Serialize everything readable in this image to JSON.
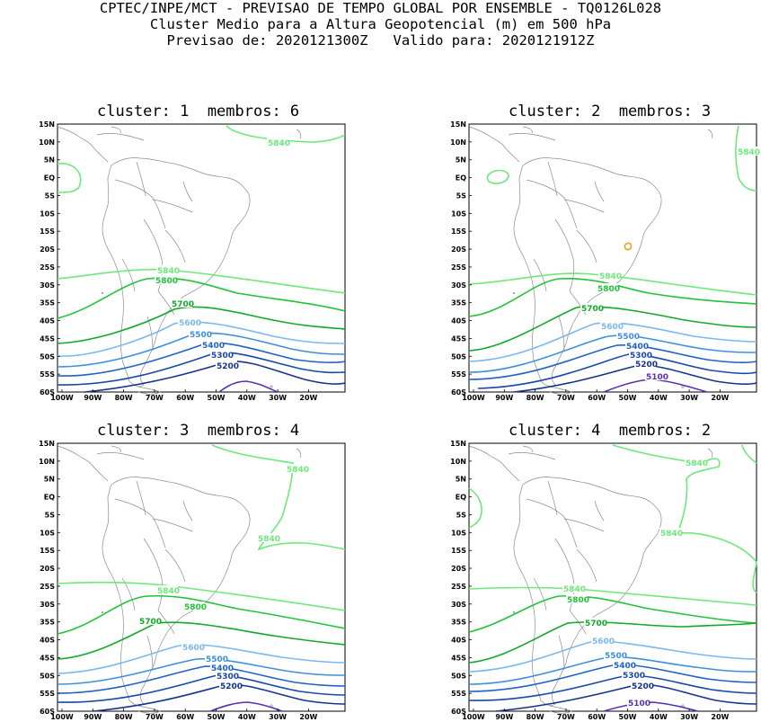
{
  "header": {
    "line1": "CPTEC/INPE/MCT - PREVISAO DE TEMPO GLOBAL POR ENSEMBLE - TQ0126L028",
    "line2": "Cluster Medio para a Altura Geopotencial (m) em 500 hPa",
    "line3": "Previsao de: 2020121300Z   Valido para: 2020121912Z"
  },
  "axes": {
    "lat_labels": [
      "15N",
      "10N",
      "5N",
      "EQ",
      "5S",
      "10S",
      "15S",
      "20S",
      "25S",
      "30S",
      "35S",
      "40S",
      "45S",
      "50S",
      "55S",
      "60S"
    ],
    "lon_labels": [
      "100W",
      "90W",
      "80W",
      "70W",
      "60W",
      "50W",
      "40W",
      "30W",
      "20W"
    ]
  },
  "contour_colors": {
    "5840": "#6ee87a",
    "5800": "#22c23a",
    "5700": "#12a82a",
    "5600": "#7ab8ef",
    "5500": "#3d8fdc",
    "5400": "#1f62c4",
    "5300": "#1848a8",
    "5200": "#14348a",
    "5100": "#5a2fb0"
  },
  "panels": [
    {
      "title": "cluster: 1  membros: 6",
      "labels": {
        "5840a": "5840",
        "5840b": "5840",
        "5800": "5800",
        "5700": "5700",
        "5600": "5600",
        "5500": "5500",
        "5400": "5400",
        "5300": "5300",
        "5200": "5200"
      }
    },
    {
      "title": "cluster: 2  membros: 3",
      "labels": {
        "5840a": "5840",
        "5840b": "5840",
        "5800": "5800",
        "5700": "5700",
        "5600": "5600",
        "5500": "5500",
        "5400": "5400",
        "5300": "5300",
        "5200": "5200",
        "5100": "5100"
      }
    },
    {
      "title": "cluster: 3  membros: 4",
      "labels": {
        "5840a": "5840",
        "5840b": "5840",
        "5840c": "5840",
        "5800": "5800",
        "5700": "5700",
        "5600": "5600",
        "5500": "5500",
        "5400": "5400",
        "5300": "5300",
        "5200": "5200"
      }
    },
    {
      "title": "cluster: 4  membros: 2",
      "labels": {
        "5840a": "5840",
        "5840b": "5840",
        "5840c": "5840",
        "5800": "5800",
        "5700": "5700",
        "5600": "5600",
        "5500": "5500",
        "5400": "5400",
        "5300": "5300",
        "5200": "5200",
        "5100": "5100"
      }
    }
  ]
}
